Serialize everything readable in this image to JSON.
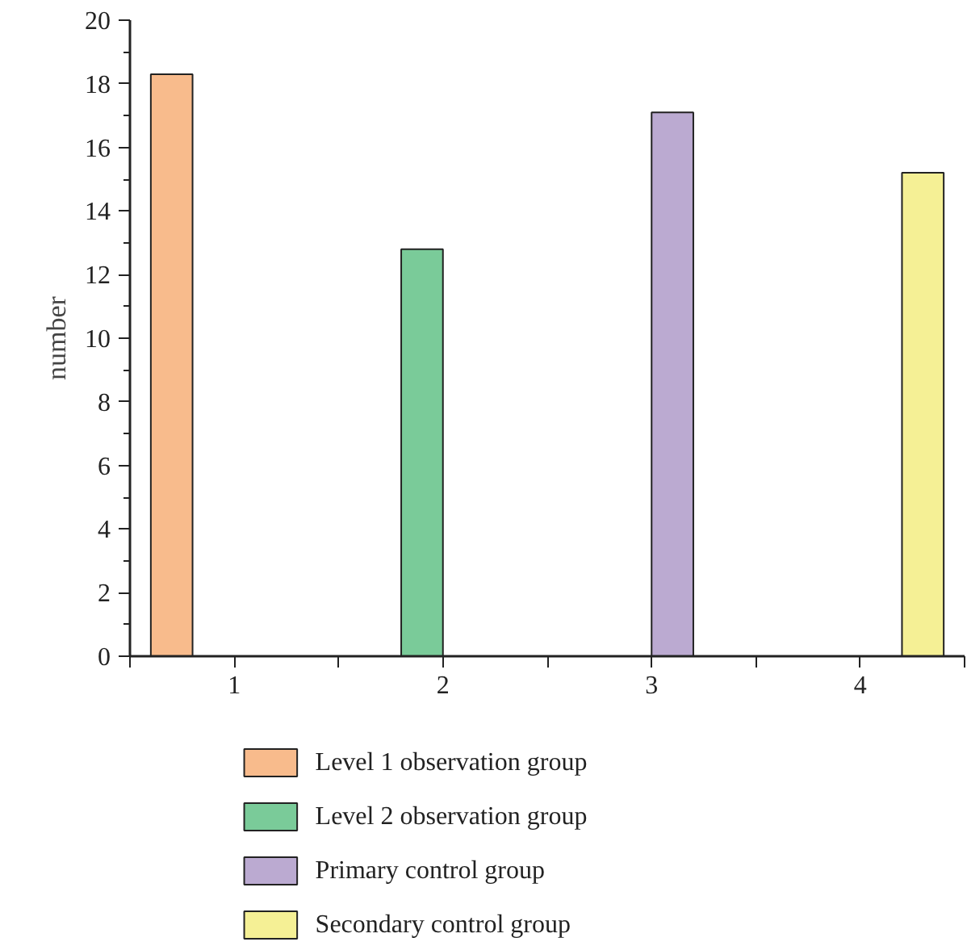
{
  "chart_data": {
    "type": "bar",
    "categories": [
      "1",
      "2",
      "3",
      "4"
    ],
    "ylabel": "number",
    "ylim": [
      0,
      20
    ],
    "yticks": [
      0,
      2,
      4,
      6,
      8,
      10,
      12,
      14,
      16,
      18,
      20
    ],
    "grid": false,
    "legend": "bottom",
    "series": [
      {
        "name": "Level 1 observation group",
        "color": "#f8bb8c",
        "values": [
          18.3,
          null,
          null,
          null
        ]
      },
      {
        "name": "Level 2 observation group",
        "color": "#7acb99",
        "values": [
          null,
          12.8,
          null,
          null
        ]
      },
      {
        "name": "Primary control group",
        "color": "#bbaad1",
        "values": [
          null,
          null,
          17.1,
          null
        ]
      },
      {
        "name": "Secondary control group",
        "color": "#f5f095",
        "values": [
          null,
          null,
          null,
          15.2
        ]
      }
    ]
  }
}
